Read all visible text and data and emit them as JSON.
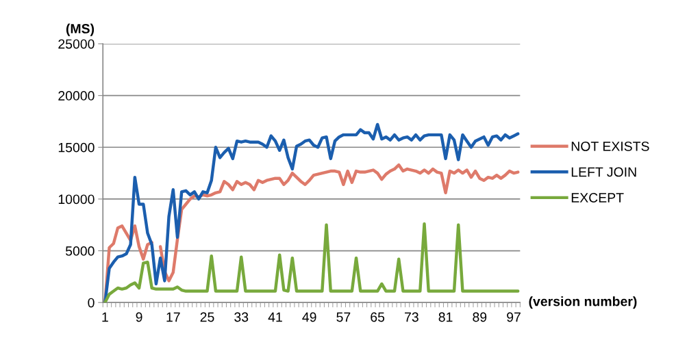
{
  "chart_data": {
    "type": "line",
    "ylabel": "(MS)",
    "xlabel": "(version number)",
    "categories": [
      "1",
      null,
      null,
      null,
      null,
      null,
      null,
      null,
      "9",
      null,
      null,
      null,
      null,
      null,
      null,
      null,
      "17",
      null,
      null,
      null,
      null,
      null,
      null,
      null,
      "25",
      null,
      null,
      null,
      null,
      null,
      null,
      null,
      "33",
      null,
      null,
      null,
      null,
      null,
      null,
      null,
      "41",
      null,
      null,
      null,
      null,
      null,
      null,
      null,
      "49",
      null,
      null,
      null,
      null,
      null,
      null,
      null,
      "57",
      null,
      null,
      null,
      null,
      null,
      null,
      null,
      "65",
      null,
      null,
      null,
      null,
      null,
      null,
      null,
      "73",
      null,
      null,
      null,
      null,
      null,
      null,
      null,
      "81",
      null,
      null,
      null,
      null,
      null,
      null,
      null,
      "89",
      null,
      null,
      null,
      null,
      null,
      null,
      null,
      "97",
      null
    ],
    "ylim": [
      0,
      25000
    ],
    "yticks": [
      0,
      5000,
      10000,
      15000,
      20000,
      25000
    ],
    "grid": "y",
    "legend": "right",
    "line_style": "solid",
    "series": [
      {
        "name": "NOT EXISTS",
        "color": "#de7a6a",
        "values": [
          0,
          5300,
          5700,
          7200,
          7400,
          6700,
          6000,
          7400,
          5400,
          4200,
          5600,
          5800,
          null,
          5400,
          3000,
          2100,
          2900,
          6100,
          9000,
          9500,
          10000,
          10300,
          10200,
          10400,
          10300,
          10400,
          10600,
          10700,
          11700,
          11400,
          10900,
          11700,
          11400,
          11600,
          11400,
          10900,
          11800,
          11600,
          11800,
          11900,
          12000,
          12000,
          11400,
          11800,
          12500,
          12100,
          11700,
          11400,
          11800,
          12300,
          12400,
          12500,
          12600,
          12700,
          12700,
          12600,
          11400,
          12700,
          11600,
          12700,
          12600,
          12600,
          12700,
          12800,
          12500,
          11900,
          12400,
          12700,
          12900,
          13300,
          12700,
          12900,
          12800,
          12700,
          12500,
          12800,
          12500,
          12900,
          12600,
          12500,
          10600,
          12700,
          12500,
          12800,
          12500,
          12800,
          12100,
          12700,
          12000,
          11800,
          12100,
          12000,
          12300,
          12000,
          12300,
          12700,
          12500,
          12600
        ]
      },
      {
        "name": "LEFT JOIN",
        "color": "#1b5eae",
        "values": [
          0,
          3300,
          3900,
          4400,
          4500,
          4700,
          5600,
          12100,
          9500,
          9500,
          6700,
          5600,
          1800,
          4300,
          2100,
          8300,
          10900,
          6300,
          10700,
          10800,
          10400,
          10700,
          10000,
          10700,
          10600,
          11800,
          15000,
          14000,
          14500,
          14900,
          13900,
          15600,
          15500,
          15600,
          15500,
          15500,
          15500,
          15300,
          15000,
          16100,
          15600,
          14700,
          15700,
          14000,
          12900,
          15100,
          15300,
          15600,
          15700,
          15200,
          15000,
          15900,
          16000,
          13900,
          15600,
          16000,
          16200,
          16200,
          16200,
          16200,
          16700,
          16400,
          16400,
          15800,
          17200,
          15800,
          16000,
          15700,
          16200,
          15700,
          15900,
          16000,
          15700,
          16200,
          15700,
          16100,
          16200,
          16200,
          16200,
          16200,
          13900,
          16200,
          15700,
          13800,
          16200,
          15600,
          15000,
          15600,
          15800,
          16000,
          15200,
          16000,
          16100,
          15700,
          16200,
          15900,
          16100,
          16300
        ]
      },
      {
        "name": "EXCEPT",
        "color": "#78a93c",
        "values": [
          0,
          800,
          1100,
          1400,
          1300,
          1400,
          1700,
          1900,
          1400,
          3800,
          3900,
          1400,
          1300,
          1300,
          1300,
          1300,
          1300,
          1500,
          1200,
          1100,
          1100,
          1100,
          1100,
          1100,
          1100,
          4500,
          1100,
          1100,
          1100,
          1100,
          1100,
          1100,
          4400,
          1100,
          1100,
          1100,
          1100,
          1100,
          1100,
          1100,
          1100,
          4600,
          1200,
          1100,
          4300,
          1100,
          1100,
          1100,
          1100,
          1100,
          1100,
          1100,
          7500,
          1100,
          1100,
          1100,
          1100,
          1100,
          1100,
          4300,
          1100,
          1100,
          1100,
          1100,
          1100,
          1800,
          1100,
          1100,
          1100,
          4200,
          1100,
          1100,
          1100,
          1100,
          1100,
          7600,
          1100,
          1100,
          1100,
          1100,
          1100,
          1100,
          1100,
          7500,
          1100,
          1100,
          1100,
          1100,
          1100,
          1100,
          1100,
          1100,
          1100,
          1100,
          1100,
          1100,
          1100,
          1100
        ]
      }
    ]
  }
}
